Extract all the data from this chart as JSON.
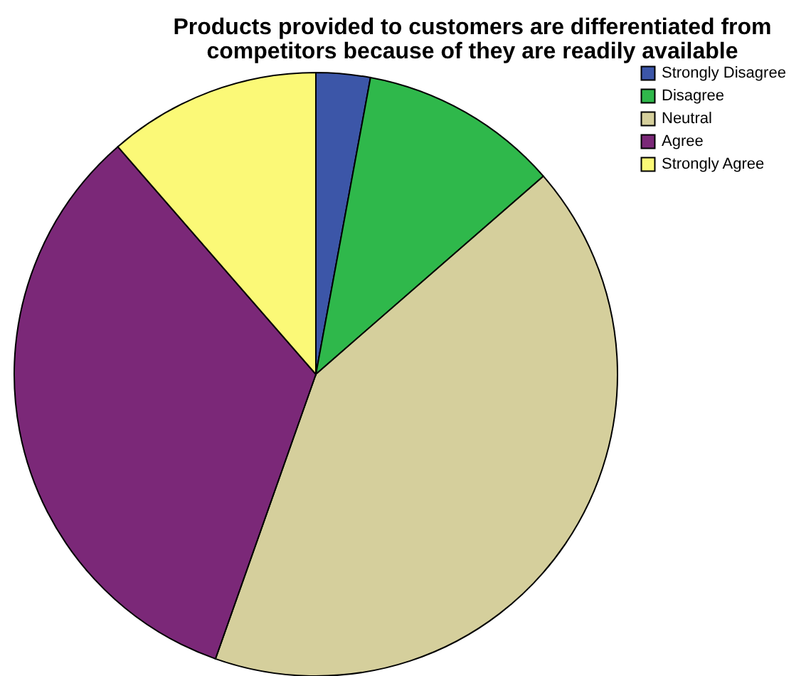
{
  "chart_data": {
    "type": "pie",
    "title": "Products provided to customers are differentiated from competitors because of they are readily available",
    "categories": [
      "Strongly Disagree",
      "Disagree",
      "Neutral",
      "Agree",
      "Strongly Agree"
    ],
    "values": [
      2.9,
      10.7,
      41.8,
      33.2,
      11.4
    ],
    "colors": [
      "#3c56a8",
      "#2fb84b",
      "#d5cf9c",
      "#7b2878",
      "#fbf977"
    ],
    "legend": "top right"
  }
}
